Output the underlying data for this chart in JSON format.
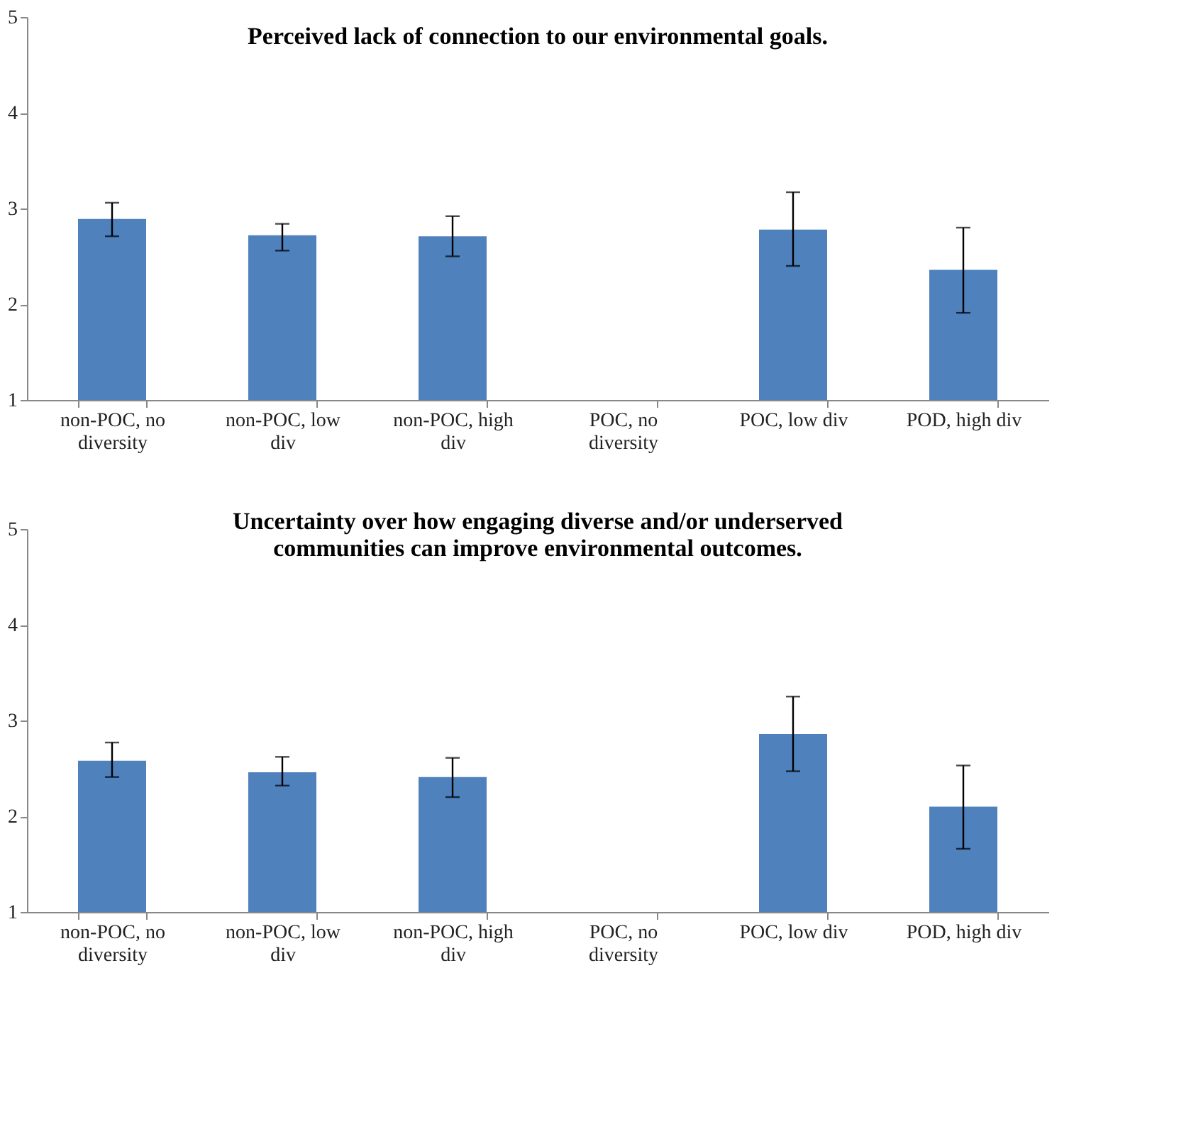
{
  "chart_data": [
    {
      "type": "bar",
      "title": "Perceived lack of connection to our environmental goals.",
      "categories": [
        "non-POC, no diversity",
        "non-POC, low div",
        "non-POC, high div",
        "POC, no diversity",
        "POC, low div",
        "POD, high div"
      ],
      "series": [
        {
          "color": "#4f81bd",
          "values": [
            2.89,
            2.72,
            2.71,
            null,
            2.78,
            2.36
          ],
          "errors": [
            [
              2.71,
              3.06
            ],
            [
              2.56,
              2.84
            ],
            [
              2.5,
              2.92
            ],
            null,
            [
              2.4,
              3.17
            ],
            [
              1.91,
              2.8
            ]
          ]
        }
      ],
      "ylim": [
        1,
        5
      ],
      "yticks": [
        1,
        2,
        3,
        4,
        5
      ],
      "grid": false
    },
    {
      "type": "bar",
      "title": [
        "Uncertainty over how engaging diverse and/or underserved",
        "communities can improve environmental outcomes."
      ],
      "categories": [
        "non-POC, no diversity",
        "non-POC, low div",
        "non-POC, high div",
        "POC, no diversity",
        "POC, low div",
        "POD, high div"
      ],
      "series": [
        {
          "color": "#4f81bd",
          "values": [
            2.58,
            2.46,
            2.41,
            null,
            2.86,
            2.1
          ],
          "errors": [
            [
              2.41,
              2.77
            ],
            [
              2.32,
              2.62
            ],
            [
              2.2,
              2.61
            ],
            null,
            [
              2.47,
              3.25
            ],
            [
              1.66,
              2.53
            ]
          ]
        }
      ],
      "ylim": [
        1,
        5
      ],
      "yticks": [
        1,
        2,
        3,
        4,
        5
      ],
      "grid": false
    }
  ]
}
